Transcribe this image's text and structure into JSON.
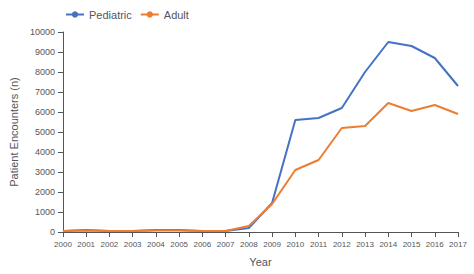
{
  "chart_data": {
    "type": "line",
    "x": [
      2000,
      2001,
      2002,
      2003,
      2004,
      2005,
      2006,
      2007,
      2008,
      2009,
      2010,
      2011,
      2012,
      2013,
      2014,
      2015,
      2016,
      2017
    ],
    "series": [
      {
        "name": "Pediatric",
        "color": "#4472C4",
        "values": [
          50,
          100,
          50,
          50,
          100,
          100,
          50,
          50,
          200,
          1450,
          5600,
          5700,
          6200,
          8000,
          9500,
          9300,
          8700,
          7300
        ]
      },
      {
        "name": "Adult",
        "color": "#ED7D31",
        "values": [
          50,
          80,
          50,
          50,
          80,
          80,
          50,
          50,
          300,
          1400,
          3100,
          3600,
          5200,
          5300,
          6450,
          6050,
          6350,
          5900
        ]
      }
    ],
    "xlabel": "Year",
    "ylabel": "Patient Encounters (n)",
    "xlim": [
      2000,
      2017
    ],
    "xticks": [
      2000,
      2001,
      2002,
      2003,
      2004,
      2005,
      2006,
      2007,
      2008,
      2009,
      2010,
      2011,
      2012,
      2013,
      2014,
      2015,
      2016,
      2017
    ],
    "ylim": [
      0,
      10000
    ],
    "yticks": [
      0,
      1000,
      2000,
      3000,
      4000,
      5000,
      6000,
      7000,
      8000,
      9000,
      10000
    ],
    "grid": false,
    "legend": "upper left"
  }
}
